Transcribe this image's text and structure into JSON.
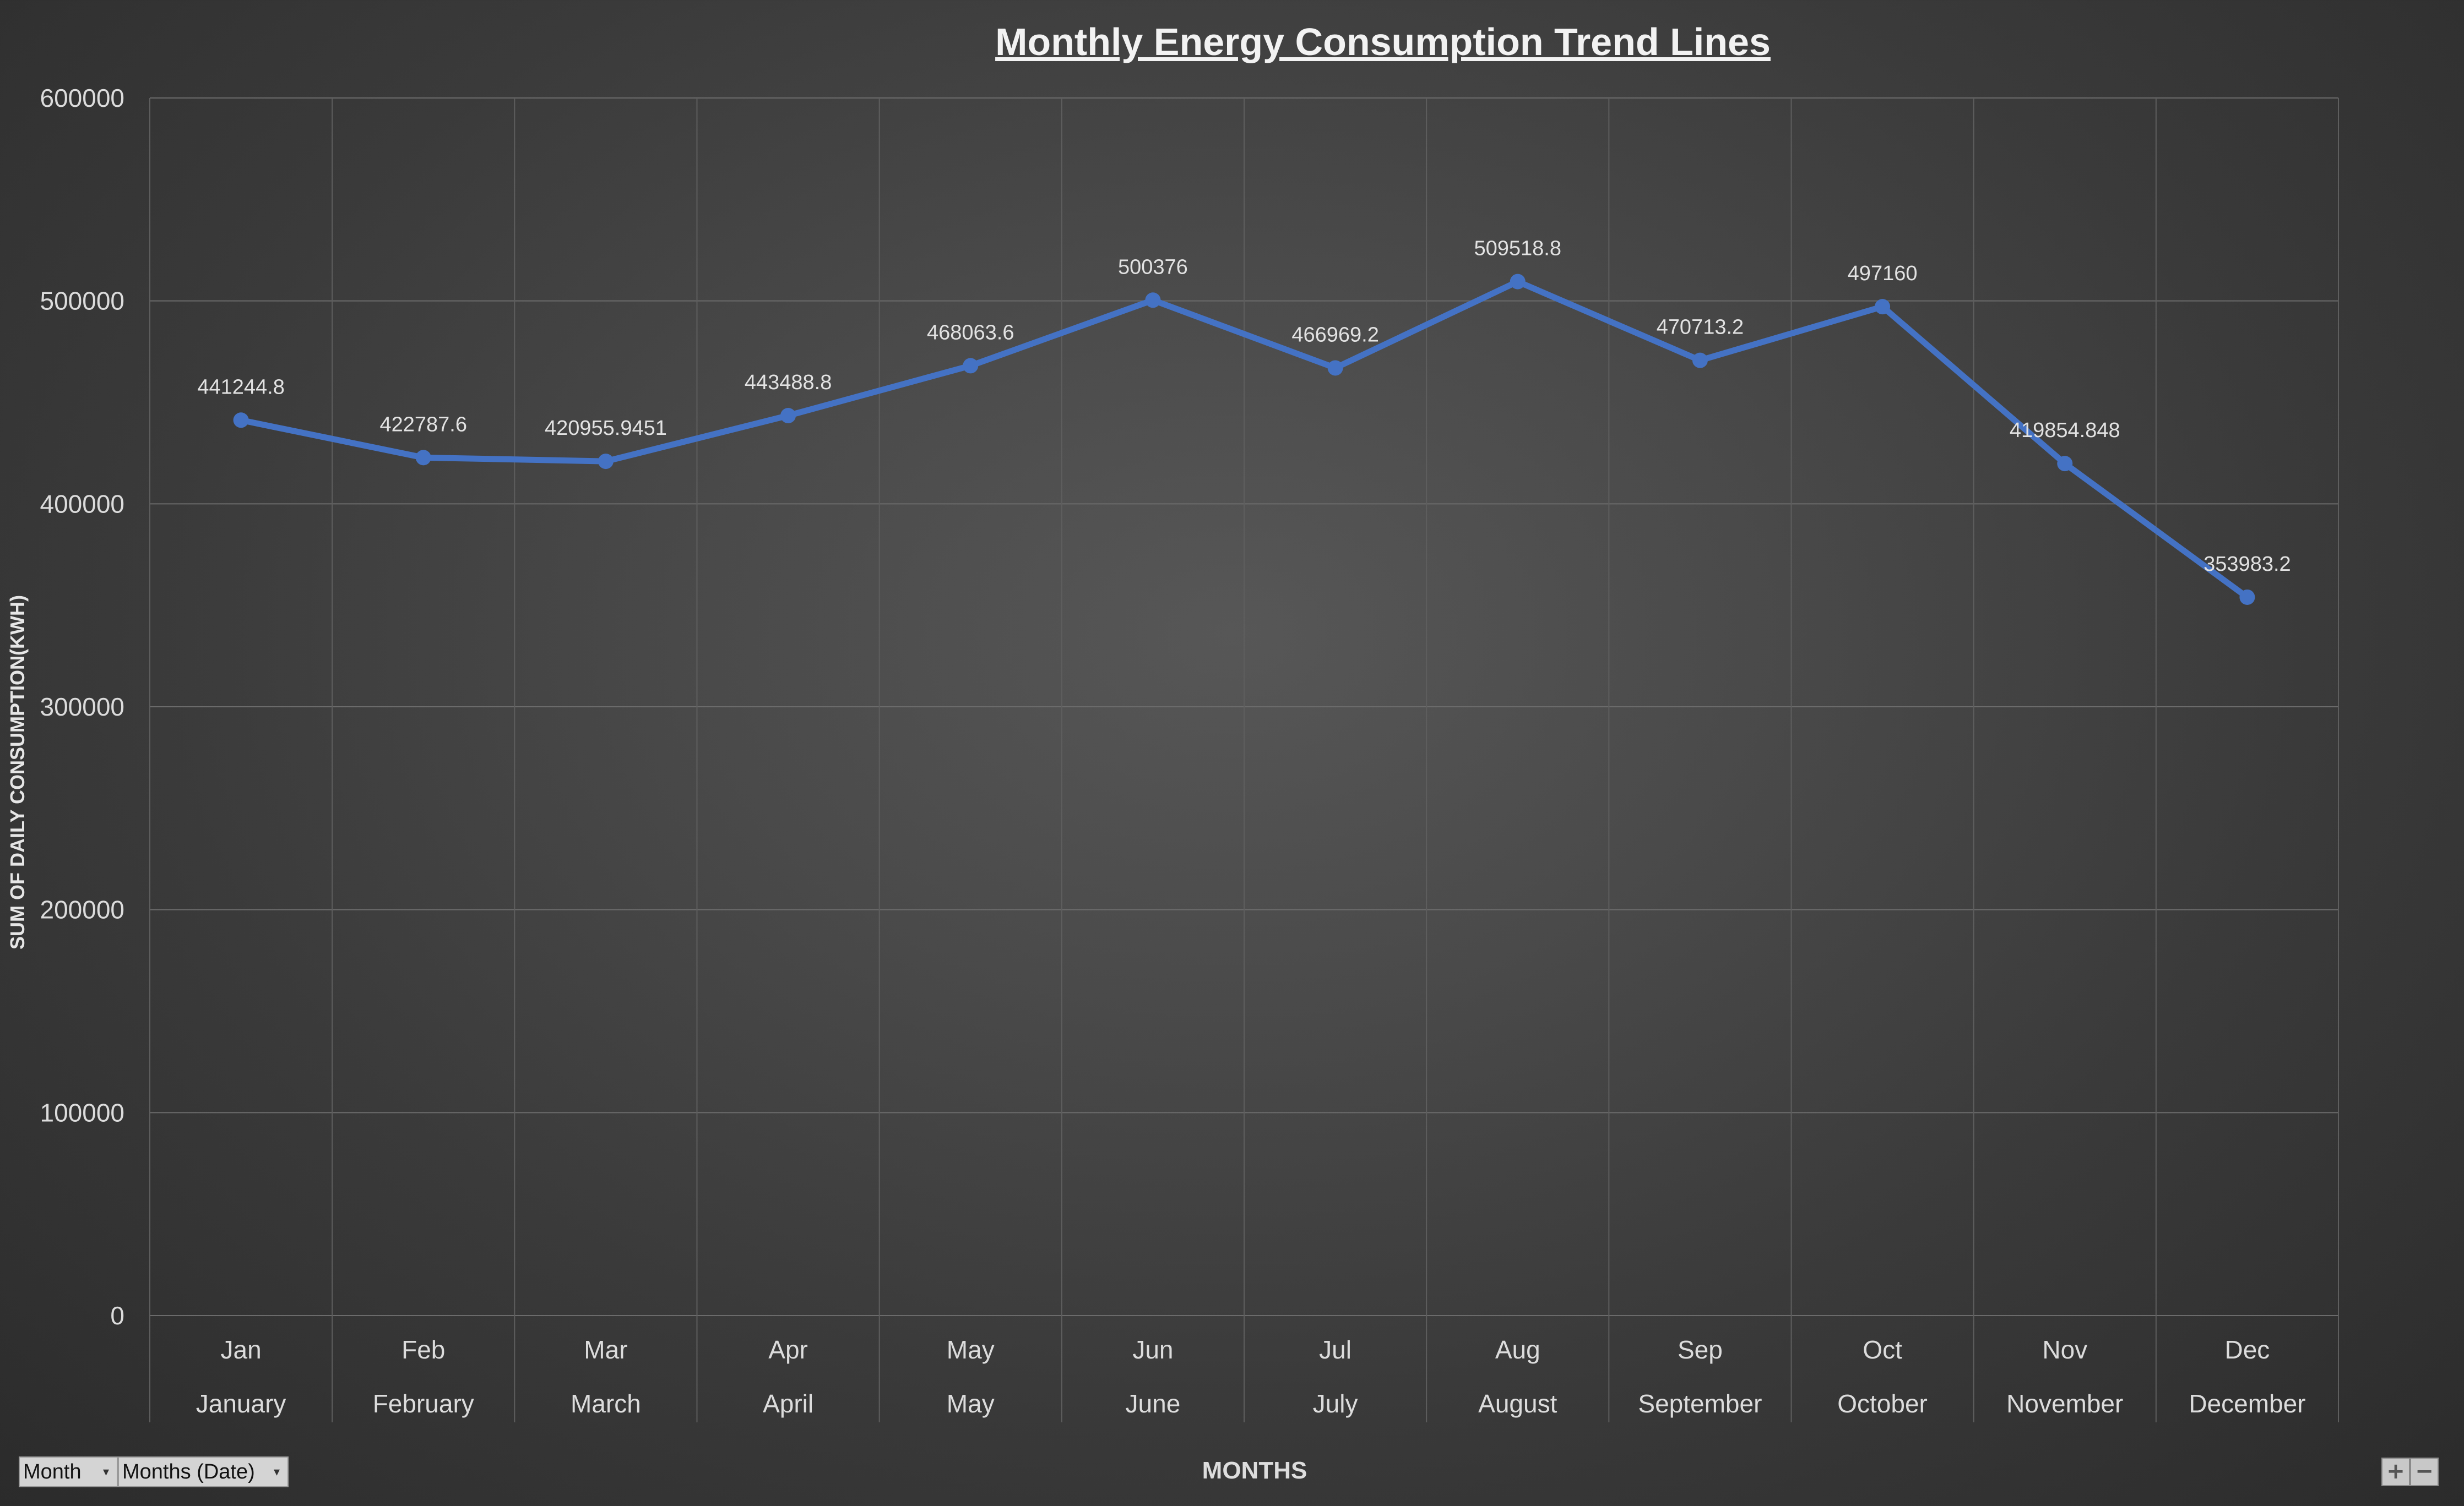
{
  "chart_data": {
    "type": "line",
    "title": "Monthly Energy Consumption Trend Lines",
    "xlabel": "MONTHS",
    "ylabel": "SUM OF DAILY CONSUMPTION(KWH)",
    "ylim": [
      0,
      600000
    ],
    "y_ticks": [
      0,
      100000,
      200000,
      300000,
      400000,
      500000,
      600000
    ],
    "grid": true,
    "categories": [
      "Jan",
      "Feb",
      "Mar",
      "Apr",
      "May",
      "Jun",
      "Jul",
      "Aug",
      "Sep",
      "Oct",
      "Nov",
      "Dec"
    ],
    "categories_level2": [
      "January",
      "February",
      "March",
      "April",
      "May",
      "June",
      "July",
      "August",
      "September",
      "October",
      "November",
      "December"
    ],
    "series": [
      {
        "color": "#4472c4",
        "values": [
          441244.8,
          422787.6,
          420955.9451,
          443488.8,
          468063.6,
          500376,
          466969.2,
          509518.8,
          470713.2,
          497160,
          419854.848,
          353983.2
        ],
        "data_labels": [
          "441244.8",
          "422787.6",
          "420955.9451",
          "443488.8",
          "468063.6",
          "500376",
          "466969.2",
          "509518.8",
          "470713.2",
          "497160",
          "419854.848",
          "353983.2"
        ]
      }
    ]
  },
  "pivot_buttons": {
    "month": "Month",
    "months_date": "Months (Date)"
  },
  "zoom": {
    "expand": "+",
    "collapse": "−"
  },
  "colors": {
    "line": "#4472c4",
    "text": "#e0e0e0",
    "grid": "#6a6a6a"
  }
}
